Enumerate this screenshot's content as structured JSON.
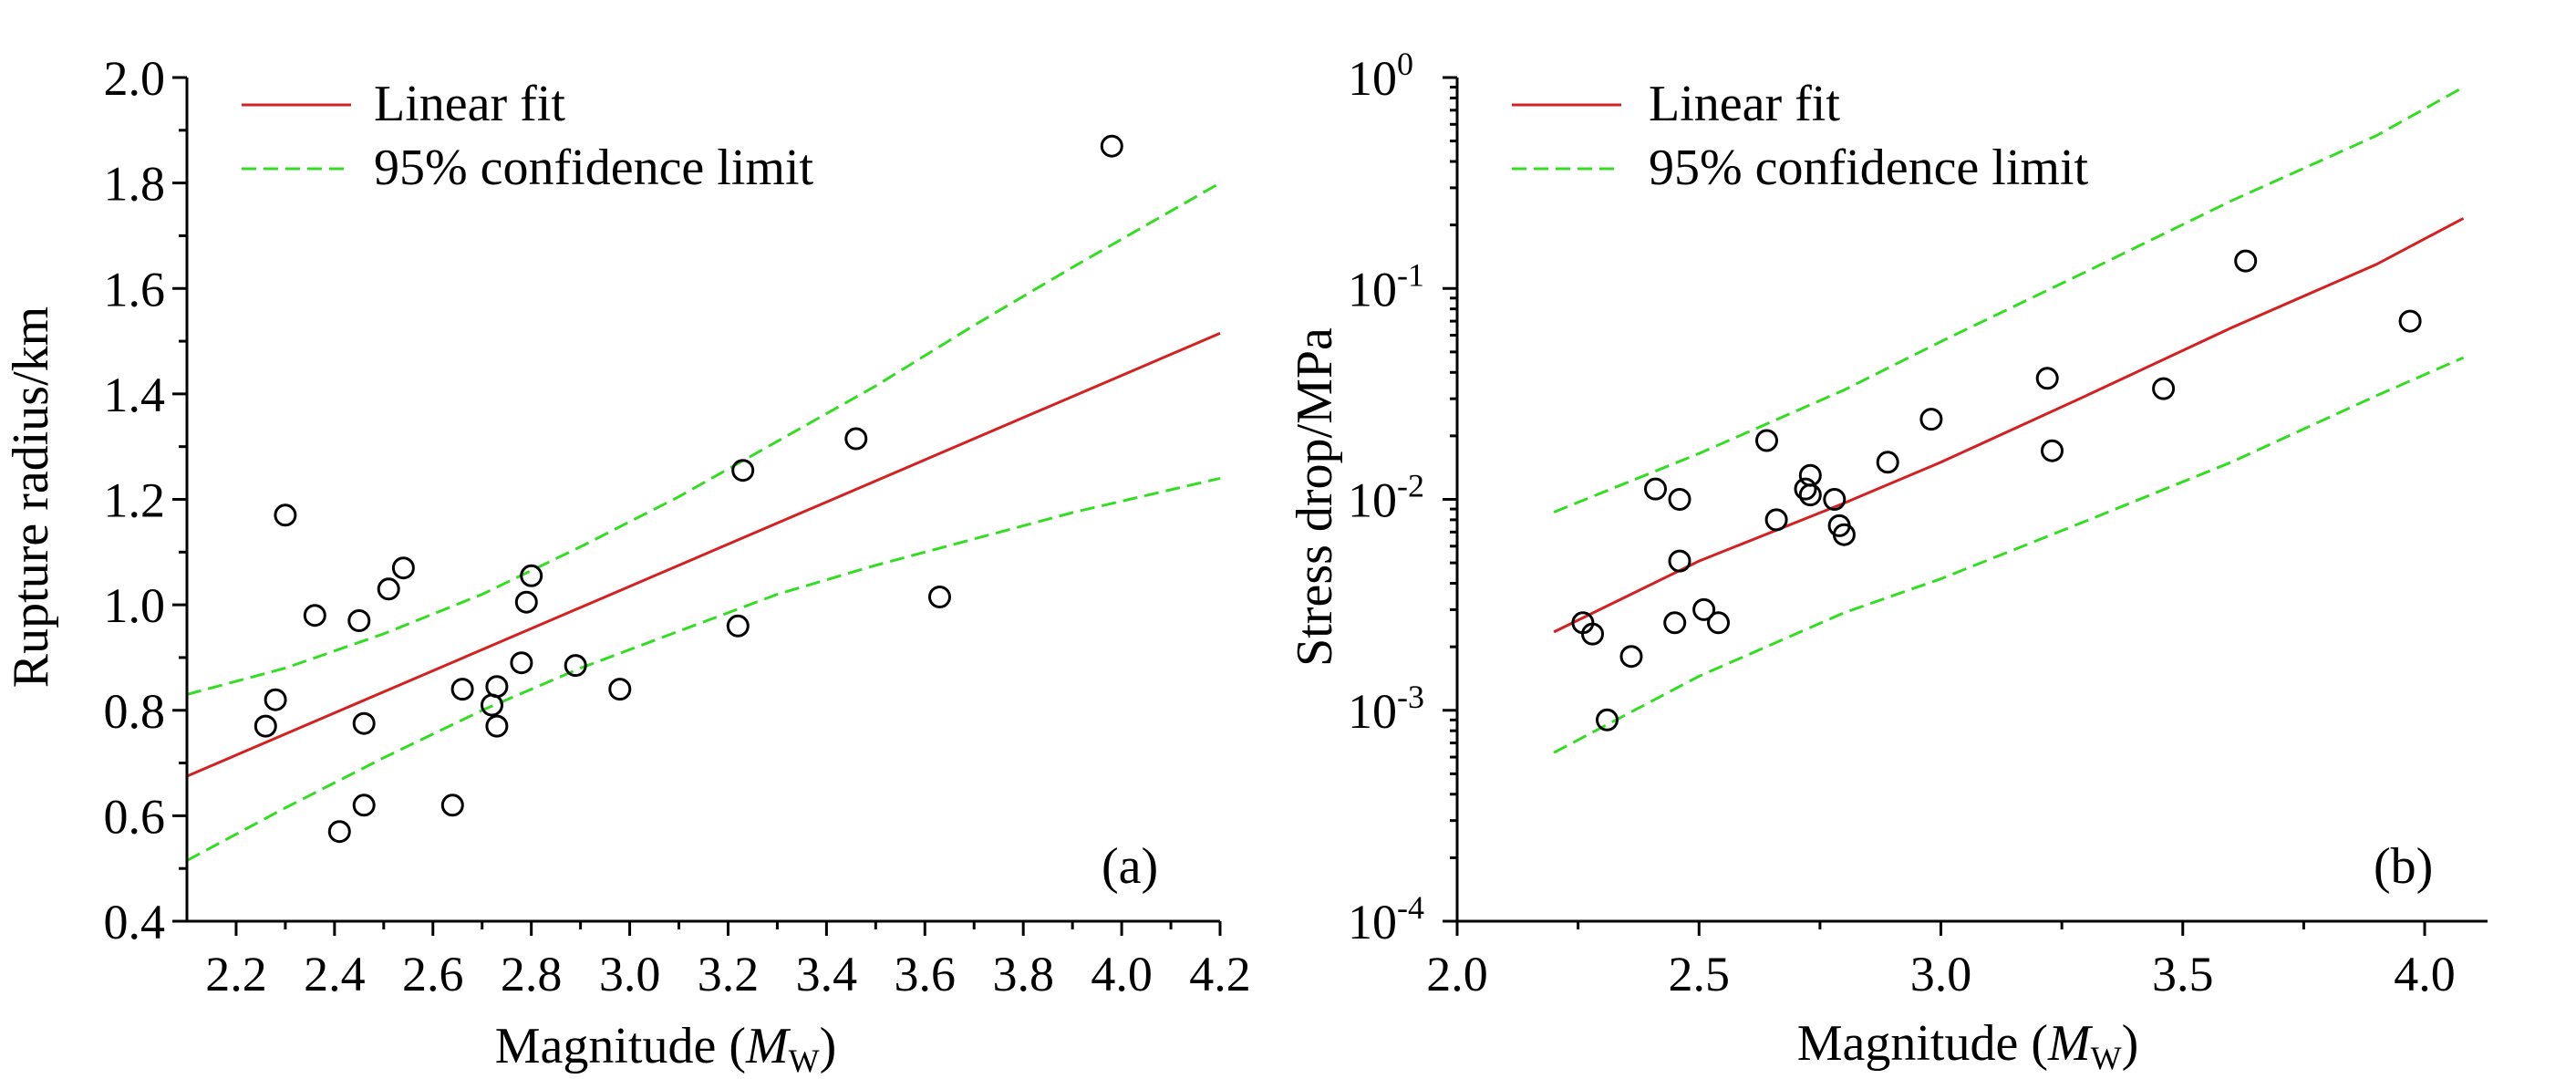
{
  "colors": {
    "fit": "#d42020",
    "confidence": "#33dd22",
    "points": "#000000"
  },
  "chart_data": [
    {
      "type": "scatter",
      "panel_label": "(a)",
      "xlabel": "Magnitude (",
      "xlabel_var": "M",
      "xlabel_sub": "W",
      "xlabel_end": ")",
      "ylabel": "Rupture radius/km",
      "xlim": [
        2.1,
        4.2
      ],
      "ylim": [
        0.4,
        2.0
      ],
      "x_ticks": [
        "2.2",
        "2.4",
        "2.6",
        "2.8",
        "3.0",
        "3.2",
        "3.4",
        "3.6",
        "3.8",
        "4.0",
        "4.2"
      ],
      "x_tick_values": [
        2.2,
        2.4,
        2.6,
        2.8,
        3.0,
        3.2,
        3.4,
        3.6,
        3.8,
        4.0,
        4.2
      ],
      "y_ticks": [
        "0.4",
        "0.6",
        "0.8",
        "1.0",
        "1.2",
        "1.4",
        "1.6",
        "1.8",
        "2.0"
      ],
      "y_tick_values": [
        0.4,
        0.6,
        0.8,
        1.0,
        1.2,
        1.4,
        1.6,
        1.8,
        2.0
      ],
      "legend": [
        "Linear fit",
        "95% confidence limit"
      ],
      "legend_position": "top-left",
      "points": [
        [
          2.26,
          0.77
        ],
        [
          2.28,
          0.82
        ],
        [
          2.3,
          1.17
        ],
        [
          2.36,
          0.98
        ],
        [
          2.41,
          0.57
        ],
        [
          2.45,
          0.97
        ],
        [
          2.46,
          0.62
        ],
        [
          2.46,
          0.775
        ],
        [
          2.51,
          1.03
        ],
        [
          2.54,
          1.07
        ],
        [
          2.64,
          0.62
        ],
        [
          2.66,
          0.84
        ],
        [
          2.72,
          0.81
        ],
        [
          2.73,
          0.77
        ],
        [
          2.73,
          0.845
        ],
        [
          2.78,
          0.89
        ],
        [
          2.79,
          1.005
        ],
        [
          2.8,
          1.055
        ],
        [
          2.89,
          0.885
        ],
        [
          2.98,
          0.84
        ],
        [
          3.22,
          0.96
        ],
        [
          3.23,
          1.255
        ],
        [
          3.46,
          1.315
        ],
        [
          3.63,
          1.015
        ],
        [
          3.98,
          1.87
        ]
      ],
      "fit_line": [
        [
          2.1,
          0.675
        ],
        [
          4.2,
          1.515
        ]
      ],
      "confidence_upper": [
        [
          2.1,
          0.83
        ],
        [
          2.3,
          0.88
        ],
        [
          2.5,
          0.945
        ],
        [
          2.7,
          1.02
        ],
        [
          2.9,
          1.11
        ],
        [
          3.1,
          1.205
        ],
        [
          3.3,
          1.31
        ],
        [
          3.5,
          1.415
        ],
        [
          3.7,
          1.53
        ],
        [
          3.9,
          1.64
        ],
        [
          4.2,
          1.8
        ]
      ],
      "confidence_lower": [
        [
          2.1,
          0.515
        ],
        [
          2.3,
          0.615
        ],
        [
          2.5,
          0.71
        ],
        [
          2.7,
          0.8
        ],
        [
          2.9,
          0.88
        ],
        [
          3.1,
          0.95
        ],
        [
          3.3,
          1.02
        ],
        [
          3.5,
          1.075
        ],
        [
          3.7,
          1.125
        ],
        [
          3.9,
          1.175
        ],
        [
          4.2,
          1.24
        ]
      ]
    },
    {
      "type": "scatter",
      "panel_label": "(b)",
      "xlabel": "Magnitude (",
      "xlabel_var": "M",
      "xlabel_sub": "W",
      "xlabel_end": ")",
      "ylabel": "Stress drop/MPa",
      "y_scale": "log",
      "xlim": [
        2.0,
        4.13
      ],
      "ylim": [
        0.0001,
        1
      ],
      "x_ticks": [
        "2.0",
        "2.5",
        "3.0",
        "3.5",
        "4.0"
      ],
      "x_tick_values": [
        2.0,
        2.5,
        3.0,
        3.5,
        4.0
      ],
      "y_ticks": [
        {
          "base": "10",
          "exp": "-4"
        },
        {
          "base": "10",
          "exp": "-3"
        },
        {
          "base": "10",
          "exp": "-2"
        },
        {
          "base": "10",
          "exp": "-1"
        },
        {
          "base": "10",
          "exp": "0"
        }
      ],
      "y_tick_values": [
        0.0001,
        0.001,
        0.01,
        0.1,
        1
      ],
      "legend": [
        "Linear fit",
        "95% confidence limit"
      ],
      "legend_position": "top-left",
      "points": [
        [
          2.26,
          0.0026
        ],
        [
          2.28,
          0.0023
        ],
        [
          2.31,
          0.0009
        ],
        [
          2.36,
          0.0018
        ],
        [
          2.41,
          0.0112
        ],
        [
          2.45,
          0.0026
        ],
        [
          2.46,
          0.01
        ],
        [
          2.46,
          0.0051
        ],
        [
          2.51,
          0.003
        ],
        [
          2.54,
          0.0026
        ],
        [
          2.64,
          0.019
        ],
        [
          2.66,
          0.008
        ],
        [
          2.72,
          0.0112
        ],
        [
          2.73,
          0.013
        ],
        [
          2.73,
          0.0105
        ],
        [
          2.78,
          0.01
        ],
        [
          2.79,
          0.0075
        ],
        [
          2.8,
          0.0068
        ],
        [
          2.89,
          0.015
        ],
        [
          2.98,
          0.024
        ],
        [
          3.22,
          0.0375
        ],
        [
          3.23,
          0.017
        ],
        [
          3.46,
          0.0335
        ],
        [
          3.63,
          0.135
        ],
        [
          3.97,
          0.07
        ]
      ],
      "fit_line": [
        [
          2.2,
          0.00235
        ],
        [
          2.5,
          0.0051
        ],
        [
          2.8,
          0.0096
        ],
        [
          3.0,
          0.015
        ],
        [
          3.3,
          0.031
        ],
        [
          3.6,
          0.065
        ],
        [
          3.9,
          0.13
        ],
        [
          4.08,
          0.215
        ]
      ],
      "confidence_upper": [
        [
          2.2,
          0.0087
        ],
        [
          2.5,
          0.0165
        ],
        [
          2.8,
          0.033
        ],
        [
          3.0,
          0.056
        ],
        [
          3.3,
          0.12
        ],
        [
          3.6,
          0.26
        ],
        [
          3.9,
          0.53
        ],
        [
          4.08,
          0.9
        ]
      ],
      "confidence_lower": [
        [
          2.2,
          0.00063
        ],
        [
          2.5,
          0.00145
        ],
        [
          2.8,
          0.0029
        ],
        [
          3.0,
          0.0042
        ],
        [
          3.3,
          0.0079
        ],
        [
          3.6,
          0.015
        ],
        [
          3.9,
          0.031
        ],
        [
          4.08,
          0.047
        ]
      ]
    }
  ]
}
